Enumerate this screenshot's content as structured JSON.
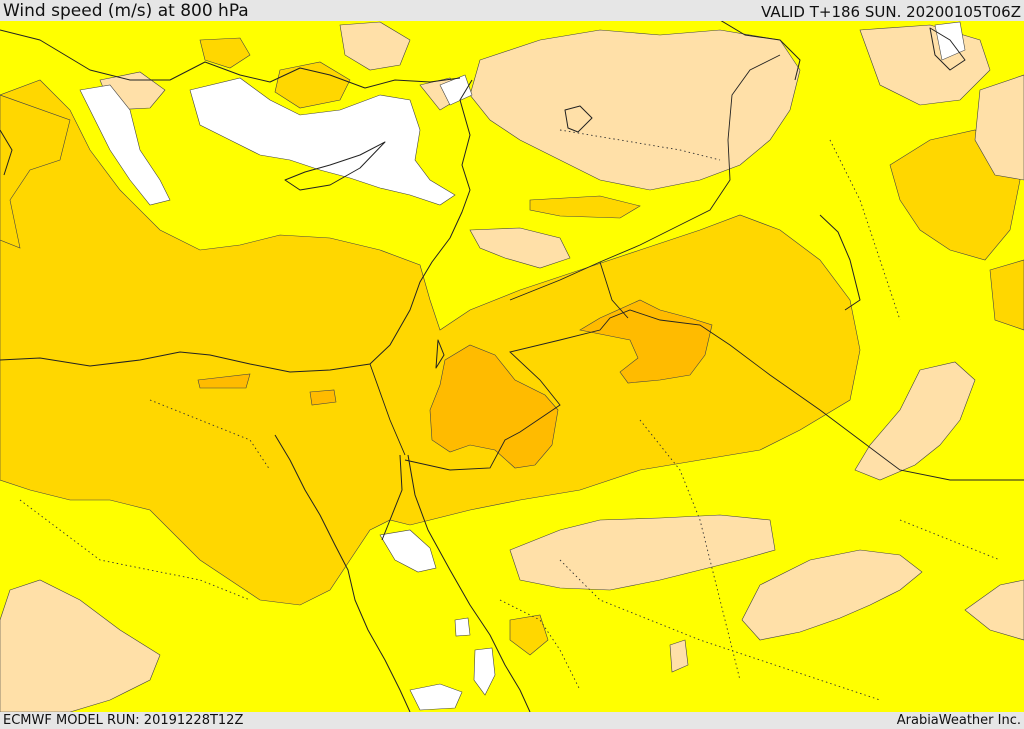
{
  "header": {
    "title": "Wind speed (m/s) at 800 hPa",
    "valid": "VALID T+186 SUN. 20200105T06Z"
  },
  "footer": {
    "model_run": "ECMWF MODEL RUN: 20191228T12Z",
    "credit": "ArabiaWeather Inc."
  },
  "map": {
    "field": "wind speed",
    "level": "800 hPa",
    "colors": {
      "lowest": "#ffffff",
      "low": "#ffe0a8",
      "base": "#ffff00",
      "moderate": "#ffd700",
      "high": "#ffbb00",
      "coastline": "#222222"
    }
  }
}
